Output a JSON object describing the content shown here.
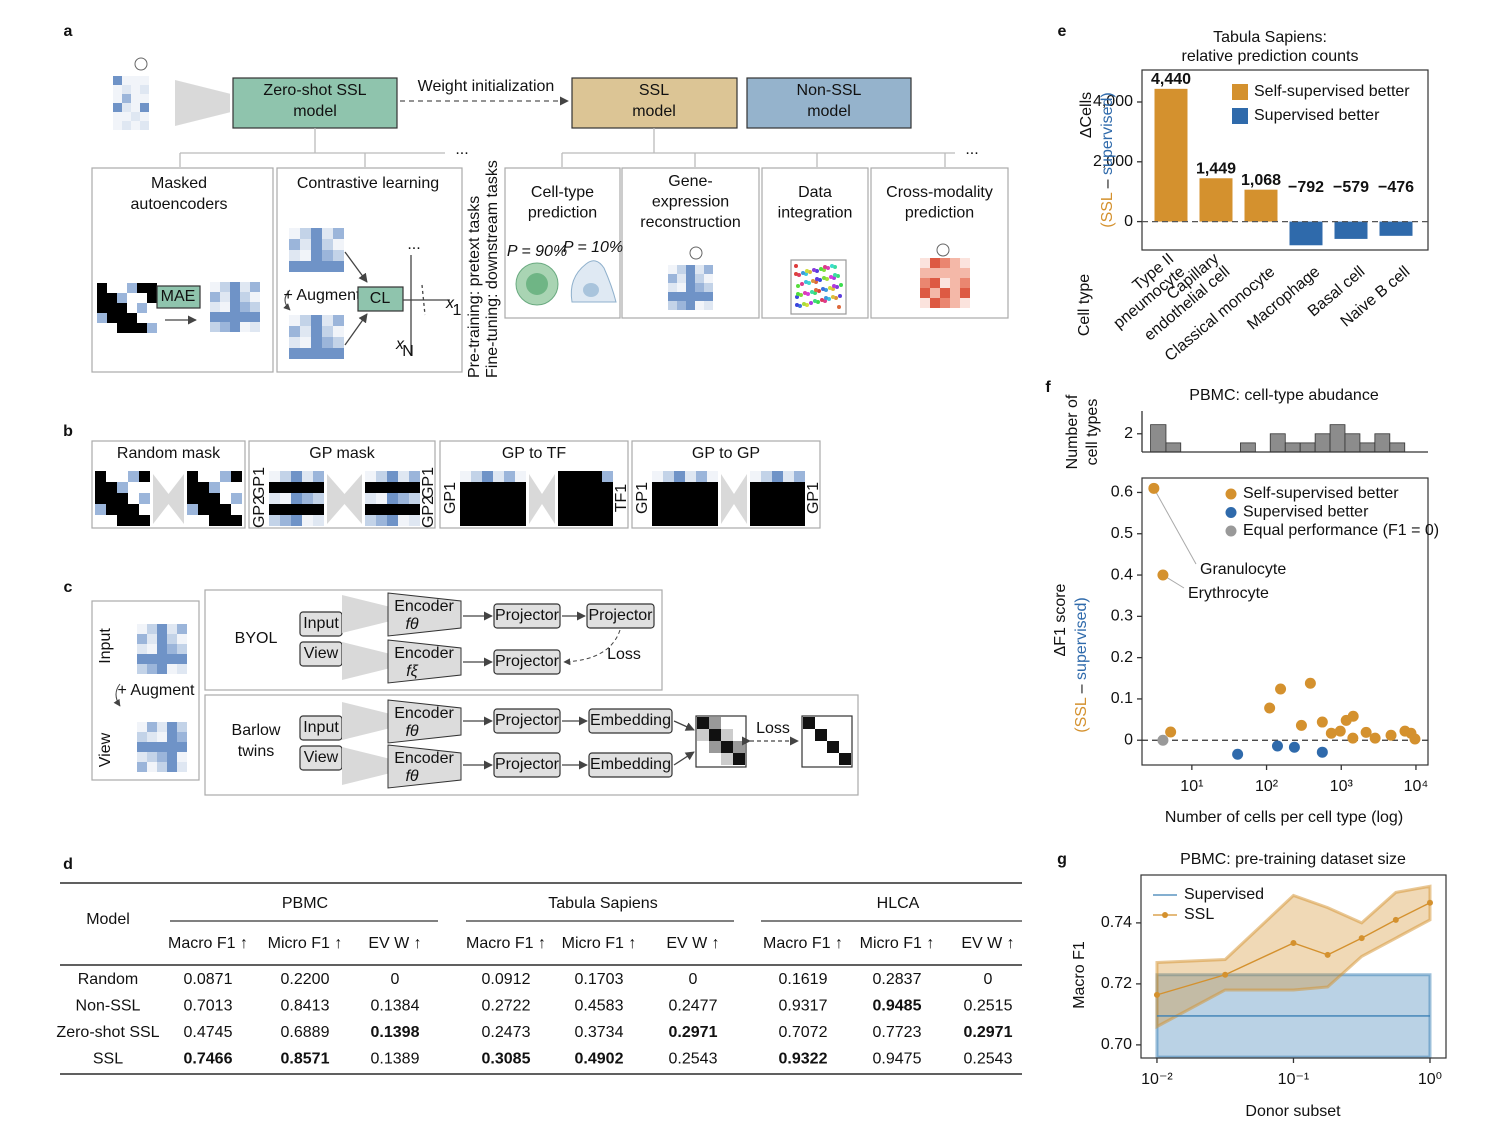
{
  "panel_a": {
    "label": "a",
    "zero_shot": [
      "Zero-shot SSL",
      "model"
    ],
    "weight_init": "Weight initialization",
    "ssl": [
      "SSL",
      "model"
    ],
    "non_ssl": [
      "Non-SSL",
      "model"
    ],
    "more": "...",
    "pretext": [
      {
        "title": [
          "Masked",
          "autoencoders"
        ]
      },
      {
        "title": [
          "Contrastive learning"
        ]
      }
    ],
    "mae": "MAE",
    "augment": "+ Augment",
    "cl": "CL",
    "embedding_dots": "...",
    "x_axis": [
      "x",
      "1"
    ],
    "n_axis": [
      "x",
      "N"
    ],
    "stage": [
      "Pre-training: pretext tasks",
      "Fine-tuning: downstream tasks"
    ],
    "downstream": [
      {
        "title": [
          "Cell-type",
          "prediction"
        ]
      },
      {
        "title": [
          "Gene-",
          "expression",
          "reconstruction"
        ]
      },
      {
        "title": [
          "Data",
          "integration"
        ]
      },
      {
        "title": [
          "Cross-modality",
          "prediction"
        ]
      }
    ],
    "probabilities": [
      "P = 90%",
      "P = 10%"
    ]
  },
  "panel_b": {
    "label": "b",
    "masks": [
      {
        "title": "Random mask"
      },
      {
        "title": "GP mask",
        "left": [
          "GP2",
          "GP1"
        ],
        "right": [
          "GP2",
          "GP1"
        ]
      },
      {
        "title": "GP to TF",
        "left": [
          "GP1"
        ],
        "right": [
          "TF1"
        ]
      },
      {
        "title": "GP to GP",
        "left": [
          "GP1"
        ],
        "right": [
          "GP1"
        ]
      }
    ]
  },
  "panel_c": {
    "label": "c",
    "input": "Input",
    "view": "View",
    "augment": "+ Augment",
    "byol": {
      "name": "BYOL",
      "input": "Input",
      "view": "View",
      "encoders": [
        [
          "Encoder",
          "fθ"
        ],
        [
          "Encoder",
          "fξ"
        ]
      ],
      "projectors": [
        "Projector",
        "Projector",
        "Projector"
      ],
      "loss": "Loss"
    },
    "barlow": {
      "name": [
        "Barlow",
        "twins"
      ],
      "input": "Input",
      "view": "View",
      "encoders": [
        [
          "Encoder",
          "fθ"
        ],
        [
          "Encoder",
          "fθ"
        ]
      ],
      "projectors": [
        "Projector",
        "Projector"
      ],
      "embeddings": [
        "Embedding",
        "Embedding"
      ],
      "loss": "Loss"
    }
  },
  "table": {
    "label": "d",
    "header": "Model",
    "groups": [
      "PBMC",
      "Tabula Sapiens",
      "HLCA"
    ],
    "columns": [
      "Macro F1 ↑",
      "Micro F1 ↑",
      "EV W ↑"
    ],
    "rows": [
      {
        "model": "Random",
        "color": "#c77cb5",
        "cells": [
          "0.0871",
          "0.2200",
          "0",
          "0.0912",
          "0.1703",
          "0",
          "0.1619",
          "0.2837",
          "0"
        ],
        "bold": []
      },
      {
        "model": "Non-SSL",
        "color": "#3c7fa6",
        "cells": [
          "0.7013",
          "0.8413",
          "0.1384",
          "0.2722",
          "0.4583",
          "0.2477",
          "0.9317",
          "0.9485",
          "0.2515"
        ],
        "bold": [
          7
        ]
      },
      {
        "model": "Zero-shot SSL",
        "color": "#4f9a7e",
        "cells": [
          "0.4745",
          "0.6889",
          "0.1398",
          "0.2473",
          "0.3734",
          "0.2971",
          "0.7072",
          "0.7723",
          "0.2971"
        ],
        "bold": [
          2,
          5,
          8
        ]
      },
      {
        "model": "SSL",
        "color": "#d49b2e",
        "cells": [
          "0.7466",
          "0.8571",
          "0.1389",
          "0.3085",
          "0.4902",
          "0.2543",
          "0.9322",
          "0.9475",
          "0.2543"
        ],
        "bold": [
          0,
          1,
          3,
          4,
          6
        ]
      }
    ]
  },
  "chart_data": [
    {
      "type": "bar",
      "label": "e",
      "title": [
        "Tabula Sapiens:",
        "relative prediction counts"
      ],
      "ylabel": [
        "ΔCells",
        "(SSL",
        "–",
        "supervised)"
      ],
      "ylabel_colors": [
        "#111111",
        "#d4912e",
        "#111111",
        "#2f6aab"
      ],
      "xlabel": "Cell type",
      "categories": [
        [
          "Type II",
          "pneumocyte"
        ],
        [
          "Capillary",
          "endothelial cell"
        ],
        [
          "Classical monocyte"
        ],
        [
          "Macrophage"
        ],
        [
          "Basal cell"
        ],
        [
          "Naive B cell"
        ]
      ],
      "values": [
        4440,
        1449,
        1068,
        -792,
        -579,
        -476
      ],
      "value_labels": [
        "4,440",
        "1,449",
        "1,068",
        "−792",
        "−579",
        "−476"
      ],
      "legend": [
        "Self-supervised better",
        "Supervised better"
      ],
      "colors": [
        "#d4912e",
        "#2f6aab"
      ],
      "ylim": [
        -950,
        5070
      ],
      "yticks": [
        0,
        {
          "value": 2000,
          "label": "2,000"
        },
        {
          "value": 4000,
          "label": "4,000"
        }
      ]
    },
    {
      "type": "histogram",
      "label": "f",
      "title": "PBMC: cell-type abudance",
      "ylabel": [
        "Number of",
        "cell types"
      ],
      "bins": [
        2.8,
        4.5,
        7.1,
        11.2,
        17.8,
        28.2,
        44.7,
        70.8,
        112,
        178,
        282,
        447,
        708,
        1122,
        1778,
        2818,
        4467,
        7079,
        11220
      ],
      "counts": [
        3,
        1,
        0,
        0,
        0,
        0,
        1,
        0,
        2,
        1,
        1,
        2,
        3,
        2,
        1,
        2,
        1,
        0
      ],
      "color": "#8c8c8c",
      "xscale": "log",
      "xlim": [
        2.15,
        14500
      ],
      "ylim": [
        0,
        4.5
      ],
      "yticks": [
        2
      ]
    },
    {
      "type": "scatter",
      "ylabel": [
        "ΔF1 score",
        "(SSL",
        "–",
        "supervised)"
      ],
      "ylabel_colors": [
        "#111111",
        "#d4912e",
        "#111111",
        "#2f6aab"
      ],
      "xlabel": "Number of cells per cell type (log)",
      "annotations": [
        "Granulocyte",
        "Erythrocyte"
      ],
      "series": [
        {
          "name": "Self-supervised better",
          "color": "#d4912e",
          "x": [
            3.1,
            4.1,
            5.2,
            110,
            154,
            293,
            386,
            558,
            736,
            970,
            1166,
            1445,
            1430,
            2154,
            2840,
            4640,
            7130,
            8580,
            9700
          ],
          "values": [
            0.61,
            0.4,
            0.02,
            0.078,
            0.124,
            0.036,
            0.138,
            0.044,
            0.017,
            0.022,
            0.048,
            0.058,
            0.005,
            0.019,
            0.005,
            0.012,
            0.022,
            0.017,
            0.003
          ]
        },
        {
          "name": "Supervised better",
          "color": "#2f6aab",
          "x": [
            41,
            140,
            236,
            558
          ],
          "values": [
            -0.034,
            -0.014,
            -0.017,
            -0.029
          ]
        },
        {
          "name": "Equal performance (F1 = 0)",
          "color": "#999999",
          "x": [
            4.1
          ],
          "values": [
            0
          ]
        }
      ],
      "xscale": "log",
      "xlim": [
        2.15,
        14500
      ],
      "xticks": [
        {
          "value": 10,
          "label": "10¹"
        },
        {
          "value": 100,
          "label": "10²"
        },
        {
          "value": 1000,
          "label": "10³"
        },
        {
          "value": 10000,
          "label": "10⁴"
        }
      ],
      "ylim": [
        -0.06,
        0.635
      ],
      "yticks": [
        0,
        0.1,
        0.2,
        0.3,
        0.4,
        0.5,
        0.6
      ]
    },
    {
      "type": "line",
      "label": "g",
      "title": "PBMC: pre-training dataset size",
      "ylabel": "Macro F1",
      "xlabel": "Donor subset",
      "x": [
        0.01,
        0.0316,
        0.1,
        0.178,
        0.316,
        0.562,
        1
      ],
      "series": [
        {
          "name": "Supervised",
          "color": "#3a7fb5",
          "values": [
            0.7095,
            0.7095,
            0.7095,
            0.7095,
            0.7095,
            0.7095,
            0.7095
          ],
          "lower": [
            0.696,
            0.696,
            0.696,
            0.696,
            0.696,
            0.696,
            0.696
          ],
          "upper": [
            0.723,
            0.723,
            0.723,
            0.723,
            0.723,
            0.723,
            0.723
          ]
        },
        {
          "name": "SSL",
          "color": "#d4912e",
          "values": [
            0.7164,
            0.723,
            0.7334,
            0.7295,
            0.735,
            0.741,
            0.7466
          ],
          "lower": [
            0.706,
            0.718,
            0.718,
            0.719,
            0.729,
            0.735,
            0.741
          ],
          "upper": [
            0.727,
            0.728,
            0.749,
            0.745,
            0.74,
            0.75,
            0.752
          ]
        }
      ],
      "xscale": "log",
      "xlim": [
        0.00764,
        1.31
      ],
      "xticks": [
        {
          "value": 0.01,
          "label": "10⁻²"
        },
        {
          "value": 0.1,
          "label": "10⁻¹"
        },
        {
          "value": 1,
          "label": "10⁰"
        }
      ],
      "ylim": [
        0.6957,
        0.7557
      ],
      "yticks": [
        {
          "value": 0.7,
          "label": "0.70"
        },
        0.72,
        0.74
      ]
    }
  ]
}
